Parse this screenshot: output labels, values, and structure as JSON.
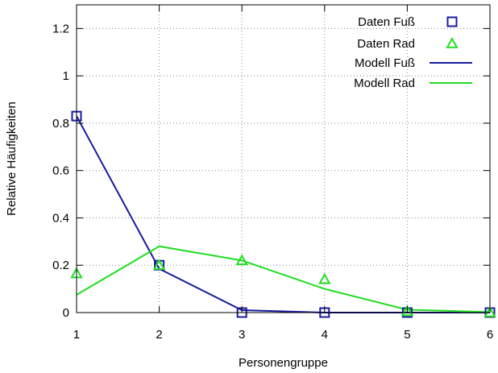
{
  "chart_data": {
    "type": "scatter",
    "title": "",
    "xlabel": "Personengruppe",
    "ylabel": "Relative Häufigkeiten",
    "xlim": [
      1,
      6
    ],
    "ylim": [
      0,
      1.3
    ],
    "xticks": [
      1,
      2,
      3,
      4,
      5,
      6
    ],
    "xtick_labels": [
      "1",
      "2",
      "3",
      "4",
      "5",
      "6"
    ],
    "yticks": [
      0,
      0.2,
      0.4,
      0.6,
      0.8,
      1,
      1.2
    ],
    "ytick_labels": [
      "0",
      "0.2",
      "0.4",
      "0.6",
      "0.8",
      "1",
      "1.2"
    ],
    "grid": true,
    "legend_position": "top-right",
    "series": [
      {
        "name": "Daten Fuß",
        "kind": "points",
        "marker": "square",
        "color": "#1a1a9c",
        "x": [
          1,
          2,
          3,
          4,
          5,
          6
        ],
        "y": [
          0.83,
          0.2,
          0.0,
          0.0,
          0.0,
          0.0
        ]
      },
      {
        "name": "Daten Rad",
        "kind": "points",
        "marker": "triangle",
        "color": "#22dd22",
        "x": [
          1,
          2,
          3,
          4,
          5,
          6
        ],
        "y": [
          0.165,
          0.2,
          0.22,
          0.14,
          0.005,
          0.0
        ]
      },
      {
        "name": "Modell Fuß",
        "kind": "line",
        "color": "#1a1a9c",
        "x": [
          1,
          2,
          3,
          4,
          5,
          6
        ],
        "y": [
          0.83,
          0.185,
          0.01,
          0.0,
          0.0,
          0.0
        ]
      },
      {
        "name": "Modell Rad",
        "kind": "line",
        "color": "#22dd22",
        "x": [
          1,
          2,
          3,
          4,
          5,
          6
        ],
        "y": [
          0.075,
          0.28,
          0.22,
          0.1,
          0.012,
          0.002
        ]
      }
    ]
  }
}
